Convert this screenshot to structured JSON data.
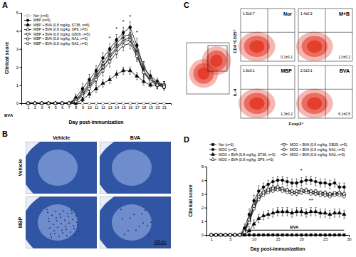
{
  "chart_data": [
    {
      "panel": "A",
      "type": "line",
      "x_label": "Day post-immunization",
      "y_label": "Clinical score",
      "x": [
        1,
        2,
        3,
        4,
        5,
        6,
        7,
        8,
        9,
        10,
        11,
        12,
        13,
        14,
        15,
        16,
        17,
        18,
        19,
        20,
        21
      ],
      "xlim": [
        0,
        22
      ],
      "xticks": [
        1,
        2,
        3,
        4,
        5,
        6,
        7,
        8,
        9,
        10,
        11,
        12,
        13,
        14,
        15,
        16,
        17,
        18,
        19,
        20,
        21
      ],
      "ylim": [
        0,
        5
      ],
      "yticks": [
        0,
        1,
        2,
        3,
        4,
        5
      ],
      "legend": "upper left",
      "treatment": {
        "label": "BVA"
      },
      "significance": [
        {
          "text": "*",
          "x": 13,
          "y": 3.5
        },
        {
          "text": "*",
          "x": 14,
          "y": 4.0
        },
        {
          "text": "*",
          "x": 15,
          "y": 4.4
        },
        {
          "text": "*",
          "x": 16,
          "y": 4.7
        },
        {
          "text": "*",
          "x": 17,
          "y": 3.8
        }
      ],
      "series": [
        {
          "name": "Nor (n=3)",
          "color": "#999999",
          "marker": "square-open",
          "values": [
            0,
            0,
            0,
            0,
            0,
            0,
            0,
            0,
            0,
            0,
            0,
            0,
            0,
            0,
            0,
            0,
            0,
            0,
            0,
            0,
            0
          ]
        },
        {
          "name": "MBP (n=6)",
          "color": "#000000",
          "marker": "circle",
          "values": [
            0,
            0,
            0,
            0,
            0,
            0,
            0,
            0.3,
            0.8,
            1.3,
            1.8,
            2.5,
            3.0,
            3.5,
            3.9,
            4.2,
            3.2,
            2.0,
            1.5,
            1.2,
            1.0
          ],
          "errors": [
            0,
            0,
            0,
            0,
            0,
            0,
            0,
            0.2,
            0.3,
            0.3,
            0.3,
            0.3,
            0.3,
            0.3,
            0.3,
            0.3,
            0.4,
            0.3,
            0.3,
            0.2,
            0.2
          ]
        },
        {
          "name": "MBP + BVA (0.8 mg/kg, ST36, n=6)",
          "color": "#000000",
          "marker": "triangle",
          "values": [
            0,
            0,
            0,
            0,
            0,
            0,
            0,
            0,
            0.2,
            0.5,
            0.8,
            1.1,
            1.3,
            1.6,
            1.8,
            1.8,
            1.5,
            1.2,
            1.0,
            1.0,
            0.9
          ],
          "errors": [
            0,
            0,
            0,
            0,
            0,
            0,
            0,
            0,
            0.1,
            0.2,
            0.2,
            0.2,
            0.2,
            0.2,
            0.2,
            0.2,
            0.2,
            0.2,
            0.1,
            0.1,
            0.1
          ]
        },
        {
          "name": "MBP + BVA (0.8 mg/kg, SP9, n=5)",
          "color": "#000000",
          "marker": "triangle-open",
          "values": [
            0,
            0,
            0,
            0,
            0,
            0,
            0,
            0.2,
            0.6,
            1.1,
            1.6,
            2.2,
            2.8,
            3.3,
            3.7,
            3.8,
            3.0,
            2.0,
            1.4,
            1.1,
            1.0
          ],
          "errors": [
            0,
            0,
            0,
            0,
            0,
            0,
            0,
            0.2,
            0.3,
            0.3,
            0.3,
            0.3,
            0.3,
            0.3,
            0.3,
            0.3,
            0.3,
            0.3,
            0.2,
            0.2,
            0.2
          ]
        },
        {
          "name": "MBP + BVA (0.8 mg/kg, GB39, n=5)",
          "color": "#000000",
          "marker": "triangle-down-open",
          "values": [
            0,
            0,
            0,
            0,
            0,
            0,
            0,
            0.2,
            0.5,
            1.0,
            1.5,
            2.0,
            2.6,
            3.1,
            3.5,
            3.6,
            2.8,
            1.8,
            1.3,
            1.1,
            1.0
          ],
          "errors": [
            0,
            0,
            0,
            0,
            0,
            0,
            0,
            0.2,
            0.3,
            0.3,
            0.3,
            0.3,
            0.3,
            0.3,
            0.3,
            0.3,
            0.3,
            0.3,
            0.2,
            0.2,
            0.2
          ]
        },
        {
          "name": "MBP + BVA (0.8 mg/kg, NA1, n=5)",
          "color": "#000000",
          "marker": "square-open",
          "values": [
            0,
            0,
            0,
            0,
            0,
            0,
            0,
            0.1,
            0.5,
            0.9,
            1.4,
            2.0,
            2.5,
            3.0,
            3.4,
            3.5,
            2.7,
            1.7,
            1.3,
            1.0,
            1.0
          ],
          "errors": [
            0,
            0,
            0,
            0,
            0,
            0,
            0,
            0.2,
            0.3,
            0.3,
            0.3,
            0.3,
            0.3,
            0.3,
            0.3,
            0.3,
            0.3,
            0.3,
            0.2,
            0.2,
            0.2
          ]
        },
        {
          "name": "MBP + BVA (0.8 mg/kg, NA2, n=5)",
          "color": "#000000",
          "marker": "circle-open",
          "values": [
            0,
            0,
            0,
            0,
            0,
            0,
            0,
            0.1,
            0.4,
            0.8,
            1.3,
            1.8,
            2.3,
            2.8,
            3.2,
            3.3,
            2.6,
            1.7,
            1.2,
            1.0,
            0.9
          ],
          "errors": [
            0,
            0,
            0,
            0,
            0,
            0,
            0,
            0.2,
            0.3,
            0.3,
            0.3,
            0.3,
            0.3,
            0.3,
            0.3,
            0.3,
            0.3,
            0.3,
            0.2,
            0.2,
            0.2
          ]
        }
      ]
    },
    {
      "panel": "D",
      "type": "line",
      "x_label": "Day post-immunization",
      "y_label": "Clinical score",
      "x": [
        1,
        2,
        3,
        4,
        5,
        6,
        7,
        8,
        9,
        10,
        11,
        12,
        13,
        14,
        15,
        16,
        17,
        18,
        19,
        20,
        21,
        22,
        23,
        24,
        25,
        26,
        27,
        28,
        29
      ],
      "xlim": [
        0,
        30
      ],
      "xticks": [
        1,
        5,
        10,
        15,
        20,
        25,
        30
      ],
      "ylim": [
        0,
        5
      ],
      "yticks": [
        0,
        1,
        2,
        3,
        4,
        5
      ],
      "legend": "top",
      "treatment": {
        "label": "BVA",
        "start": 8,
        "end": 29,
        "y": 0.35
      },
      "significance": [
        {
          "text": "*",
          "x": 20,
          "y": 4.6
        },
        {
          "text": "**",
          "x": 22,
          "y": 2.4
        }
      ],
      "series": [
        {
          "name": "Nor (n=3)",
          "color": "#000000",
          "marker": "square",
          "values": [
            0,
            0,
            0,
            0,
            0,
            0,
            0,
            0,
            0,
            0,
            0,
            0,
            0,
            0,
            0,
            0,
            0,
            0,
            0,
            0,
            0,
            0,
            0,
            0,
            0,
            0,
            0,
            0,
            0
          ]
        },
        {
          "name": "MOG (n=5)",
          "color": "#000000",
          "marker": "circle",
          "values": [
            0,
            0,
            0,
            0,
            0,
            0,
            0,
            0.5,
            1.5,
            2.5,
            3.2,
            3.5,
            3.7,
            3.9,
            4.0,
            4.0,
            3.9,
            3.8,
            3.8,
            3.9,
            4.0,
            4.0,
            3.9,
            3.8,
            3.8,
            3.7,
            3.8,
            3.5,
            3.5
          ],
          "errors": [
            0,
            0,
            0,
            0,
            0,
            0,
            0,
            0.3,
            0.4,
            0.4,
            0.4,
            0.3,
            0.3,
            0.3,
            0.3,
            0.3,
            0.3,
            0.3,
            0.3,
            0.3,
            0.3,
            0.3,
            0.3,
            0.3,
            0.3,
            0.3,
            0.3,
            0.3,
            0.3
          ]
        },
        {
          "name": "MOG + BVA (0.8 mg/kg, ST36, n=5)",
          "color": "#000000",
          "marker": "triangle",
          "values": [
            0,
            0,
            0,
            0,
            0,
            0,
            0,
            0,
            0.3,
            0.8,
            1.2,
            1.4,
            1.5,
            1.6,
            1.7,
            1.7,
            1.7,
            1.6,
            1.7,
            1.7,
            1.6,
            1.7,
            1.7,
            1.6,
            1.6,
            1.5,
            1.6,
            1.6,
            1.5
          ],
          "errors": [
            0,
            0,
            0,
            0,
            0,
            0,
            0,
            0,
            0.3,
            0.3,
            0.3,
            0.3,
            0.3,
            0.3,
            0.3,
            0.3,
            0.3,
            0.3,
            0.3,
            0.3,
            0.3,
            0.3,
            0.3,
            0.3,
            0.3,
            0.3,
            0.3,
            0.3,
            0.3
          ]
        },
        {
          "name": "MOG + BVA (0.8 mg/kg, SP9, n=5)",
          "color": "#000000",
          "marker": "triangle-open",
          "values": [
            0,
            0,
            0,
            0,
            0,
            0,
            0,
            0.3,
            1.2,
            2.2,
            2.9,
            3.2,
            3.4,
            3.5,
            3.5,
            3.4,
            3.3,
            3.2,
            3.2,
            3.3,
            3.3,
            3.2,
            3.2,
            3.1,
            3.1,
            3.0,
            3.0,
            3.1,
            3.0
          ]
        },
        {
          "name": "MOG + BVA (0.8 mg/kg, GB39, n=5)",
          "color": "#000000",
          "marker": "triangle-down-open",
          "values": [
            0,
            0,
            0,
            0,
            0,
            0,
            0,
            0.3,
            1.0,
            2.0,
            2.7,
            3.0,
            3.2,
            3.3,
            3.4,
            3.3,
            3.2,
            3.1,
            3.0,
            3.1,
            3.2,
            3.1,
            3.0,
            3.0,
            2.9,
            2.9,
            3.0,
            3.0,
            2.9
          ]
        },
        {
          "name": "MOG + BVA (0.8 mg/kg, NA1, n=5)",
          "color": "#000000",
          "marker": "square-open",
          "values": [
            0,
            0,
            0,
            0,
            0,
            0,
            0,
            0.2,
            1.1,
            2.1,
            2.8,
            3.1,
            3.3,
            3.4,
            3.5,
            3.4,
            3.3,
            3.2,
            3.2,
            3.3,
            3.3,
            3.2,
            3.2,
            3.1,
            3.1,
            3.0,
            3.1,
            3.1,
            3.0
          ]
        },
        {
          "name": "MOG + BVA (0.8 mg/kg, NA2, n=5)",
          "color": "#000000",
          "marker": "circle-open",
          "values": [
            0,
            0,
            0,
            0,
            0,
            0,
            0,
            0.2,
            0.9,
            1.9,
            2.6,
            2.9,
            3.1,
            3.2,
            3.3,
            3.2,
            3.1,
            3.0,
            3.0,
            3.1,
            3.1,
            3.0,
            3.0,
            2.9,
            2.9,
            2.8,
            2.9,
            2.9,
            2.8
          ]
        }
      ]
    }
  ],
  "panel_b": {
    "panel": "B",
    "columns": [
      "Vehicle",
      "BVA"
    ],
    "rows": [
      "Vehicle",
      "MBP"
    ],
    "scale_bar": "100 μm"
  },
  "panel_c": {
    "panel": "C",
    "gate_label": "CD4⁺CD25⁺",
    "y_label": "IL-4",
    "x_label": "Foxp3⁺",
    "plots": [
      {
        "name": "Nor",
        "upper_left": "1.5±0.7",
        "lower_right": "0.1±0.1"
      },
      {
        "name": "M+B",
        "upper_left": "1.4±0.3",
        "lower_right": "1.0±0.2"
      },
      {
        "name": "MBP",
        "upper_left": "1.6±0.1",
        "lower_right": "1.3±0.2"
      },
      {
        "name": "BVA",
        "upper_left": "2.0±0.1",
        "lower_right": "6.1±0.5"
      }
    ]
  }
}
